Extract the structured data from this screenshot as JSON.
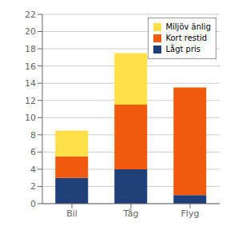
{
  "chart_data": {
    "type": "bar",
    "stacked": true,
    "categories": [
      "Bil",
      "Tåg",
      "Flyg"
    ],
    "series": [
      {
        "name": "Lågt pris",
        "color": "#1f3f7a",
        "values": [
          3.0,
          4.0,
          1.0
        ]
      },
      {
        "name": "Kort restid",
        "color": "#f05a0e",
        "values": [
          2.5,
          7.5,
          12.5
        ]
      },
      {
        "name": "Miljöv änlig",
        "color": "#ffe048",
        "values": [
          3.0,
          6.0,
          0.0
        ]
      }
    ],
    "ylim": [
      0,
      22
    ],
    "yticks": [
      0,
      2,
      4,
      6,
      8,
      10,
      12,
      14,
      16,
      18,
      20,
      22
    ],
    "grid": true,
    "legend": "upper right"
  }
}
